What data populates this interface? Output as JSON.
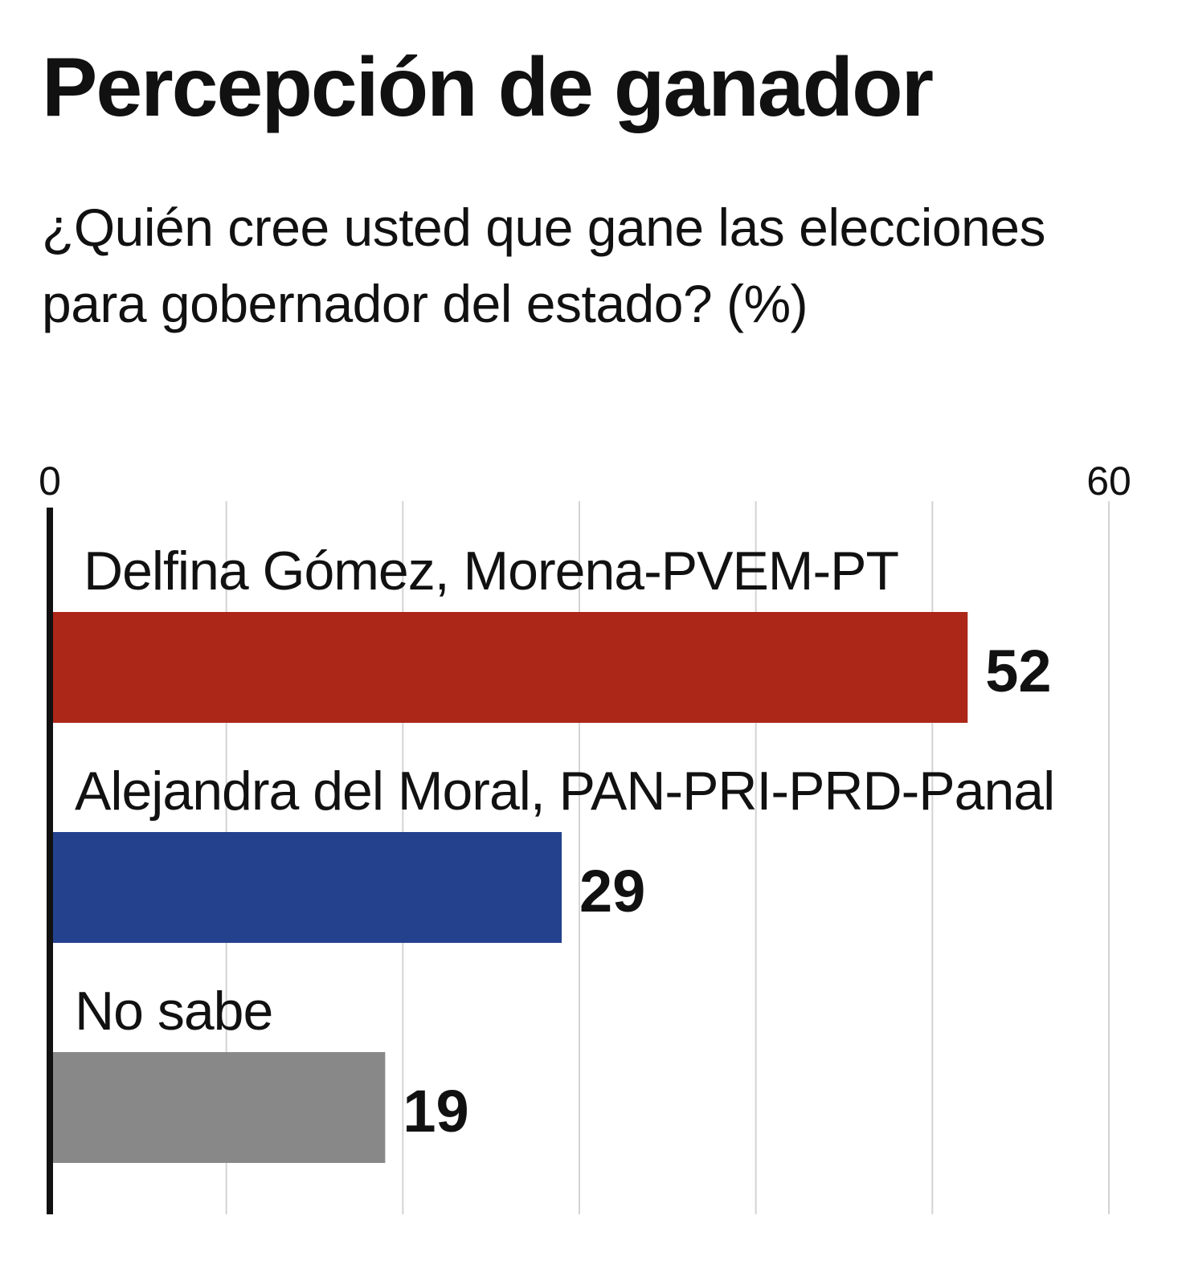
{
  "chart_data": {
    "type": "bar",
    "orientation": "horizontal",
    "title": "Percepción de ganador",
    "subtitle": "¿Quién cree usted que gane las elecciones para gobernador del estado? (%)",
    "categories": [
      "Delfina Gómez, Morena-PVEM-PT",
      "Alejandra del Moral, PAN-PRI-PRD-Panal",
      "No sabe"
    ],
    "values": [
      52,
      29,
      19
    ],
    "colors": [
      "#ac2718",
      "#24418e",
      "#888888"
    ],
    "xlim": [
      0,
      60
    ],
    "tick_labels": [
      "0",
      "60"
    ],
    "gridline_values": [
      10,
      20,
      30,
      40,
      50,
      60
    ],
    "grid": true,
    "legend": "none"
  }
}
